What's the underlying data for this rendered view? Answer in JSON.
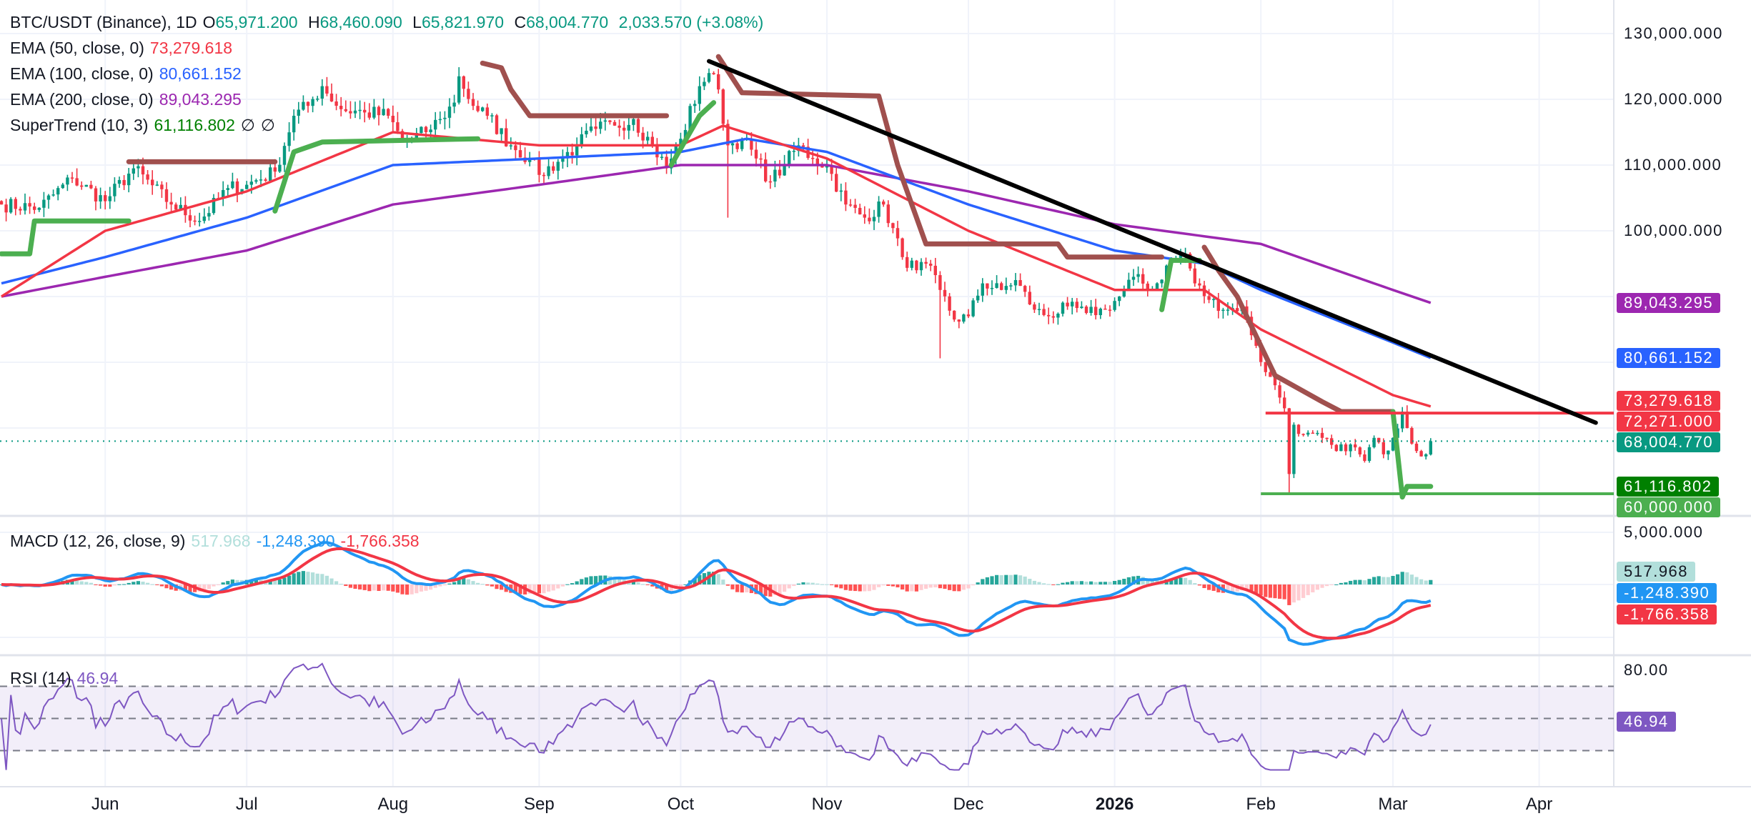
{
  "header": {
    "symbol": "BTC/USDT (Binance), 1D",
    "o_label": "O",
    "open": "65,971.200",
    "h_label": "H",
    "high": "68,460.090",
    "l_label": "L",
    "low": "65,821.970",
    "c_label": "C",
    "close": "68,004.770",
    "change": "2,033.570 (+3.08%)"
  },
  "indicators": {
    "ema50": {
      "label": "EMA (50, close, 0)",
      "value": "73,279.618",
      "color": "#F23645"
    },
    "ema100": {
      "label": "EMA (100, close, 0)",
      "value": "80,661.152",
      "color": "#2962FF"
    },
    "ema200": {
      "label": "EMA (200, close, 0)",
      "value": "89,043.295",
      "color": "#9C27B0"
    },
    "supertrend": {
      "label": "SuperTrend (10, 3)",
      "value": "61,116.802",
      "extra1": "∅",
      "extra2": "∅"
    },
    "macd": {
      "label": "MACD (12, 26, close, 9)",
      "hist": "517.968",
      "macd": "-1,248.390",
      "signal": "-1,766.358"
    },
    "rsi": {
      "label": "RSI (14)",
      "value": "46.94"
    }
  },
  "price_axis": {
    "ticks": [
      "130,000.000",
      "120,000.000",
      "110,000.000",
      "100,000.000"
    ],
    "tick_values": [
      130000,
      120000,
      110000,
      100000
    ],
    "tags": [
      {
        "text": "89,043.295",
        "price": 89043.295,
        "color": "#9C27B0",
        "fg": "#fff"
      },
      {
        "text": "80,661.152",
        "price": 80661.152,
        "color": "#2962FF",
        "fg": "#fff"
      },
      {
        "text": "73,279.618",
        "price": 74100,
        "color": "#F23645",
        "fg": "#fff"
      },
      {
        "text": "72,271.000",
        "price": 71650,
        "color": "#F23645",
        "fg": "#fff"
      },
      {
        "text": "68,004.770",
        "price": 68004.77,
        "color": "#089981",
        "fg": "#fff"
      },
      {
        "text": "61,116.802",
        "price": 61116.802,
        "color": "#008000",
        "fg": "#fff"
      },
      {
        "text": "60,000.000",
        "price": 60000,
        "color": "#4CAF50",
        "fg": "#fff"
      }
    ]
  },
  "macd_axis": {
    "tick": "5,000.000",
    "tags": [
      {
        "text": "517.968",
        "color": "#B2DFDB",
        "fg": "#131722"
      },
      {
        "text": "-1,248.390",
        "color": "#2196F3",
        "fg": "#fff"
      },
      {
        "text": "-1,766.358",
        "color": "#F23645",
        "fg": "#fff"
      }
    ]
  },
  "rsi_axis": {
    "tick": "80.00",
    "tag": "46.94",
    "tag_color": "#7E57C2"
  },
  "time_axis": [
    {
      "label": "Jun",
      "day": 22
    },
    {
      "label": "Jul",
      "day": 52
    },
    {
      "label": "Aug",
      "day": 83
    },
    {
      "label": "Sep",
      "day": 114
    },
    {
      "label": "Oct",
      "day": 144
    },
    {
      "label": "Nov",
      "day": 175
    },
    {
      "label": "Dec",
      "day": 205
    },
    {
      "label": "2026",
      "day": 236,
      "bold": true
    },
    {
      "label": "Feb",
      "day": 267
    },
    {
      "label": "Mar",
      "day": 295
    },
    {
      "label": "Apr",
      "day": 326
    }
  ],
  "chart_data": {
    "type": "candlestick",
    "title": "BTC/USDT (Binance), 1D",
    "ylim": [
      54000,
      133000
    ],
    "last_candle": {
      "open": 65971.2,
      "high": 68460.09,
      "low": 65821.97,
      "close": 68004.77
    },
    "close_keypoints": [
      [
        0,
        104000
      ],
      [
        8,
        103500
      ],
      [
        15,
        108000
      ],
      [
        22,
        104500
      ],
      [
        28,
        109500
      ],
      [
        36,
        104000
      ],
      [
        42,
        101500
      ],
      [
        48,
        106500
      ],
      [
        52,
        107000
      ],
      [
        58,
        109000
      ],
      [
        62,
        117500
      ],
      [
        65,
        119000
      ],
      [
        68,
        122000
      ],
      [
        72,
        118500
      ],
      [
        77,
        118000
      ],
      [
        82,
        117500
      ],
      [
        85,
        113500
      ],
      [
        90,
        115000
      ],
      [
        93,
        117000
      ],
      [
        96,
        119500
      ],
      [
        97,
        123500
      ],
      [
        100,
        119000
      ],
      [
        103,
        117500
      ],
      [
        108,
        113000
      ],
      [
        112,
        111000
      ],
      [
        114,
        108500
      ],
      [
        118,
        110500
      ],
      [
        122,
        113000
      ],
      [
        126,
        115500
      ],
      [
        130,
        116000
      ],
      [
        134,
        117000
      ],
      [
        138,
        113000
      ],
      [
        141,
        109500
      ],
      [
        144,
        114000
      ],
      [
        148,
        122000
      ],
      [
        150,
        124000
      ],
      [
        152,
        121500
      ],
      [
        154,
        113000
      ],
      [
        157,
        114000
      ],
      [
        160,
        111000
      ],
      [
        163,
        107500
      ],
      [
        166,
        110000
      ],
      [
        169,
        113000
      ],
      [
        172,
        111000
      ],
      [
        175,
        110000
      ],
      [
        179,
        104000
      ],
      [
        183,
        102000
      ],
      [
        187,
        104000
      ],
      [
        191,
        96000
      ],
      [
        194,
        94000
      ],
      [
        196,
        95000
      ],
      [
        199,
        91000
      ],
      [
        202,
        86500
      ],
      [
        205,
        87000
      ],
      [
        208,
        92000
      ],
      [
        212,
        91000
      ],
      [
        215,
        92500
      ],
      [
        219,
        88000
      ],
      [
        222,
        87000
      ],
      [
        226,
        88500
      ],
      [
        230,
        87500
      ],
      [
        234,
        88000
      ],
      [
        237,
        90000
      ],
      [
        240,
        93000
      ],
      [
        244,
        91000
      ],
      [
        248,
        95500
      ],
      [
        251,
        96500
      ],
      [
        253,
        92000
      ],
      [
        256,
        89500
      ],
      [
        260,
        88000
      ],
      [
        263,
        88500
      ],
      [
        266,
        82500
      ],
      [
        268,
        78500
      ],
      [
        270,
        76500
      ],
      [
        272,
        73000
      ],
      [
        273,
        63000
      ],
      [
        274,
        70500
      ],
      [
        276,
        69000
      ],
      [
        280,
        68500
      ],
      [
        283,
        66500
      ],
      [
        286,
        67500
      ],
      [
        289,
        65000
      ],
      [
        291,
        68500
      ],
      [
        293,
        66000
      ],
      [
        295,
        68500
      ],
      [
        297,
        72500
      ],
      [
        298,
        70000
      ],
      [
        300,
        66500
      ],
      [
        302,
        66000
      ],
      [
        303,
        68004.77
      ]
    ],
    "ema50": [
      [
        0,
        90000
      ],
      [
        22,
        100000
      ],
      [
        52,
        106000
      ],
      [
        83,
        115000
      ],
      [
        114,
        113000
      ],
      [
        144,
        113000
      ],
      [
        153,
        116000
      ],
      [
        175,
        111000
      ],
      [
        205,
        100000
      ],
      [
        236,
        91000
      ],
      [
        255,
        91000
      ],
      [
        267,
        85000
      ],
      [
        295,
        75000
      ],
      [
        303,
        73279.618
      ]
    ],
    "ema100": [
      [
        0,
        92000
      ],
      [
        22,
        96000
      ],
      [
        52,
        102000
      ],
      [
        83,
        110000
      ],
      [
        114,
        111000
      ],
      [
        144,
        112000
      ],
      [
        158,
        114000
      ],
      [
        175,
        112000
      ],
      [
        205,
        104000
      ],
      [
        236,
        97000
      ],
      [
        255,
        95000
      ],
      [
        267,
        91000
      ],
      [
        295,
        83000
      ],
      [
        303,
        80661.152
      ]
    ],
    "ema200": [
      [
        0,
        90000
      ],
      [
        22,
        93000
      ],
      [
        52,
        97000
      ],
      [
        83,
        104000
      ],
      [
        114,
        107000
      ],
      [
        144,
        110000
      ],
      [
        175,
        110000
      ],
      [
        205,
        106000
      ],
      [
        236,
        101000
      ],
      [
        267,
        98000
      ],
      [
        295,
        91000
      ],
      [
        303,
        89043.295
      ]
    ],
    "supertrend": [
      {
        "trend": "up",
        "points": [
          [
            0,
            96500
          ],
          [
            6,
            96500
          ],
          [
            7,
            101500
          ],
          [
            27,
            101500
          ]
        ]
      },
      {
        "trend": "down",
        "points": [
          [
            27,
            110500
          ],
          [
            58,
            110500
          ]
        ]
      },
      {
        "trend": "up",
        "points": [
          [
            58,
            103000
          ],
          [
            62,
            112000
          ],
          [
            68,
            113500
          ],
          [
            101,
            114000
          ]
        ]
      },
      {
        "trend": "down",
        "points": [
          [
            102,
            125500
          ],
          [
            106,
            124800
          ],
          [
            108,
            121500
          ],
          [
            112,
            117500
          ],
          [
            141,
            117500
          ]
        ]
      },
      {
        "trend": "up",
        "points": [
          [
            142,
            110000
          ],
          [
            148,
            117500
          ],
          [
            151,
            119500
          ]
        ]
      },
      {
        "trend": "down",
        "points": [
          [
            152,
            126500
          ],
          [
            157,
            121000
          ],
          [
            186,
            120500
          ],
          [
            190,
            110000
          ],
          [
            193,
            104000
          ],
          [
            196,
            98000
          ],
          [
            224,
            98000
          ],
          [
            226,
            96000
          ],
          [
            246,
            96000
          ]
        ]
      },
      {
        "trend": "up",
        "points": [
          [
            246,
            88000
          ],
          [
            248,
            95500
          ],
          [
            254,
            95500
          ]
        ]
      },
      {
        "trend": "down",
        "points": [
          [
            255,
            97500
          ],
          [
            258,
            94000
          ],
          [
            262,
            90000
          ],
          [
            266,
            84000
          ],
          [
            270,
            78000
          ],
          [
            275,
            76000
          ],
          [
            280,
            74000
          ],
          [
            284,
            72500
          ],
          [
            295,
            72500
          ]
        ]
      },
      {
        "trend": "up",
        "points": [
          [
            295,
            72500
          ],
          [
            297,
            59500
          ],
          [
            298,
            61116.802
          ],
          [
            303,
            61116.802
          ]
        ]
      }
    ],
    "trendline": [
      [
        150,
        125800
      ],
      [
        338,
        70800
      ]
    ],
    "resistance": {
      "price": 72271,
      "from_day": 268
    },
    "support": {
      "price": 60000,
      "from_day": 267
    },
    "colors": {
      "up": "#089981",
      "down": "#F23645",
      "st_up": "#4CAF50",
      "st_down": "#A0504E",
      "macd": "#2196F3",
      "signal": "#F23645",
      "rsi": "#7E57C2"
    }
  }
}
